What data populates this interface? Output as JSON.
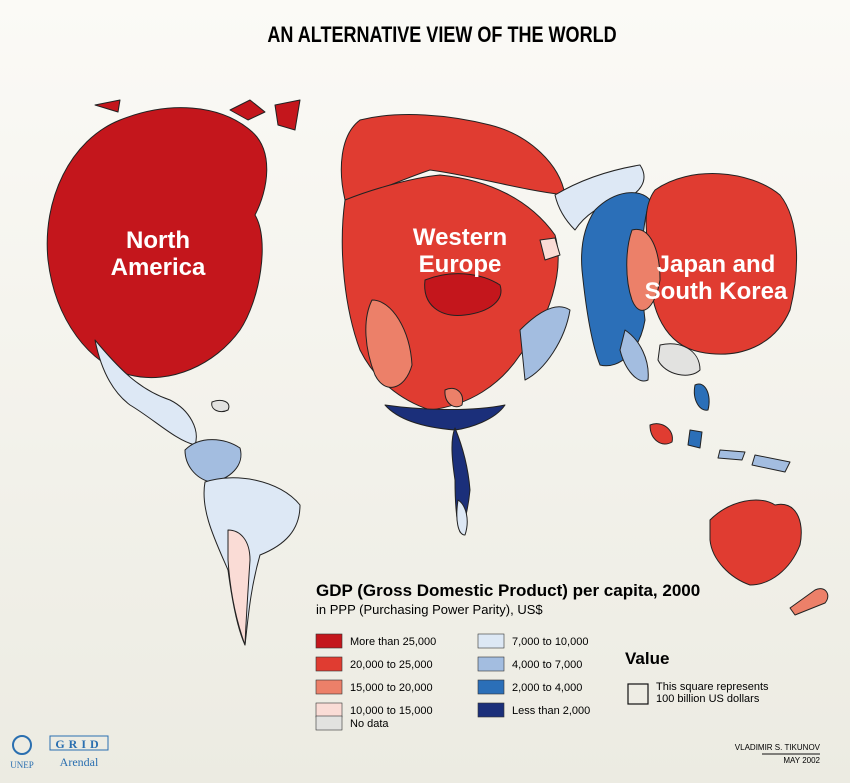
{
  "title": "AN ALTERNATIVE VIEW OF THE WORLD",
  "regions": [
    {
      "lines": [
        "North",
        "America"
      ]
    },
    {
      "lines": [
        "Western",
        "Europe"
      ]
    },
    {
      "lines": [
        "Japan and",
        "South Korea"
      ]
    }
  ],
  "legend": {
    "title": "GDP (Gross Domestic Product) per capita, 2000",
    "subtitle": "in PPP (Purchasing Power Parity), US$",
    "items": [
      {
        "label": "More than 25,000",
        "color": "#c4161c"
      },
      {
        "label": "20,000 to 25,000",
        "color": "#e03c31"
      },
      {
        "label": "15,000 to 20,000",
        "color": "#ec8069"
      },
      {
        "label": "10,000 to 15,000",
        "color": "#fadcd6"
      },
      {
        "label": "No data",
        "color": "#e2e2e0"
      },
      {
        "label": "7,000 to 10,000",
        "color": "#dde8f5"
      },
      {
        "label": "4,000 to 7,000",
        "color": "#a3bde0"
      },
      {
        "label": "2,000 to 4,000",
        "color": "#2b6fb8"
      },
      {
        "label": "Less than 2,000",
        "color": "#1b2f7a"
      }
    ]
  },
  "value_box": {
    "title": "Value",
    "lines": [
      "This square represents",
      "100 billion US dollars"
    ]
  },
  "credits": {
    "author": "VLADIMIR S. TIKUNOV",
    "date": "MAY 2002"
  },
  "logos": {
    "unep": "UNEP",
    "grid": "GRID",
    "arendal": "Arendal"
  }
}
